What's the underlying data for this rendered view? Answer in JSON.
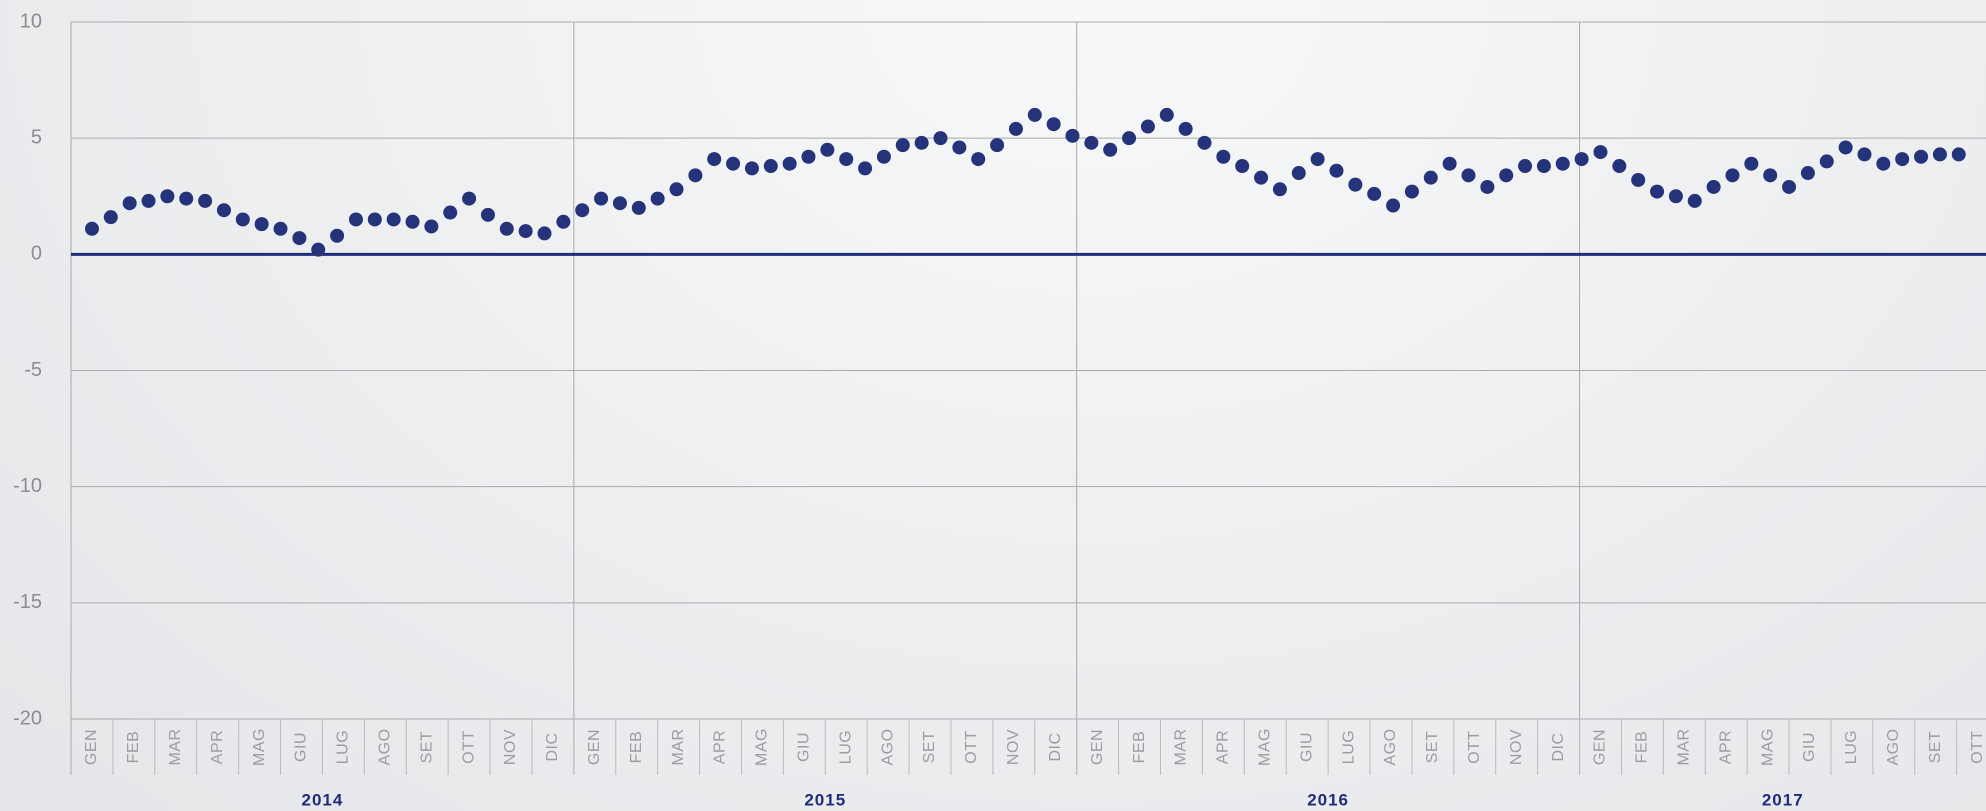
{
  "chart_data": {
    "type": "scatter",
    "color": "#25337a",
    "zero_line_color": "#1f2d7a",
    "grid": true,
    "ylim": [
      -20,
      10
    ],
    "yticks": [
      -20,
      -15,
      -10,
      -5,
      0,
      5,
      10
    ],
    "xlim": [
      0,
      45.7
    ],
    "xticks": [
      0,
      12,
      24,
      36
    ],
    "categories": [
      "GEN",
      "FEB",
      "MAR",
      "APR",
      "MAG",
      "GIU",
      "LUG",
      "AGO",
      "SET",
      "OTT",
      "NOV",
      "DIC",
      "GEN",
      "FEB",
      "MAR",
      "APR",
      "MAG",
      "GIU",
      "LUG",
      "AGO",
      "SET",
      "OTT",
      "NOV",
      "DIC",
      "GEN",
      "FEB",
      "MAR",
      "APR",
      "MAG",
      "GIU",
      "LUG",
      "AGO",
      "SET",
      "OTT",
      "NOV",
      "DIC",
      "GEN",
      "FEB",
      "MAR",
      "APR",
      "MAG",
      "GIU",
      "LUG",
      "AGO",
      "SET",
      "OTT"
    ],
    "year_labels": [
      "2014",
      "2015",
      "2016",
      "2017"
    ],
    "x": [
      0.5,
      0.95,
      1.4,
      1.85,
      2.3,
      2.75,
      3.2,
      3.65,
      4.1,
      4.55,
      5,
      5.45,
      5.9,
      6.35,
      6.8,
      7.25,
      7.7,
      8.15,
      8.6,
      9.05,
      9.5,
      9.95,
      10.4,
      10.85,
      11.3,
      11.75,
      12.2,
      12.65,
      13.1,
      13.55,
      14,
      14.45,
      14.9,
      15.35,
      15.8,
      16.25,
      16.7,
      17.15,
      17.6,
      18.05,
      18.5,
      18.95,
      19.4,
      19.85,
      20.3,
      20.75,
      21.2,
      21.65,
      22.1,
      22.55,
      23,
      23.45,
      23.9,
      24.35,
      24.8,
      25.25,
      25.7,
      26.15,
      26.6,
      27.05,
      27.5,
      27.95,
      28.4,
      28.85,
      29.3,
      29.75,
      30.2,
      30.65,
      31.1,
      31.55,
      32,
      32.45,
      32.9,
      33.35,
      33.8,
      34.25,
      34.7,
      35.15,
      35.6,
      36.05,
      36.5,
      36.95,
      37.4,
      37.85,
      38.3,
      38.75,
      39.2,
      39.65,
      40.1,
      40.55,
      41,
      41.45,
      41.9,
      42.35,
      42.8,
      43.25,
      43.7,
      44.15,
      44.6,
      45.05
    ],
    "values": [
      1.1,
      1.6,
      2.2,
      2.3,
      2.5,
      2.4,
      2.3,
      1.9,
      1.5,
      1.3,
      1.1,
      0.7,
      0.2,
      0.8,
      1.5,
      1.5,
      1.5,
      1.4,
      1.2,
      1.8,
      2.4,
      1.7,
      1.1,
      1.0,
      0.9,
      1.4,
      1.9,
      2.4,
      2.2,
      2.0,
      2.4,
      2.8,
      3.4,
      4.1,
      3.9,
      3.7,
      3.8,
      3.9,
      4.2,
      4.5,
      4.1,
      3.7,
      4.2,
      4.7,
      4.8,
      5.0,
      4.6,
      4.1,
      4.7,
      5.4,
      6.0,
      5.6,
      5.1,
      4.8,
      4.5,
      5.0,
      5.5,
      6.0,
      5.4,
      4.8,
      4.2,
      3.8,
      3.3,
      2.8,
      3.5,
      4.1,
      3.6,
      3.0,
      2.6,
      2.1,
      2.7,
      3.3,
      3.9,
      3.4,
      2.9,
      3.4,
      3.8,
      3.8,
      3.9,
      4.1,
      4.4,
      3.8,
      3.2,
      2.7,
      2.5,
      2.3,
      2.9,
      3.4,
      3.9,
      3.4,
      2.9,
      3.5,
      4.0,
      4.6,
      4.3,
      3.9,
      4.1,
      4.2,
      4.3,
      4.3
    ]
  }
}
